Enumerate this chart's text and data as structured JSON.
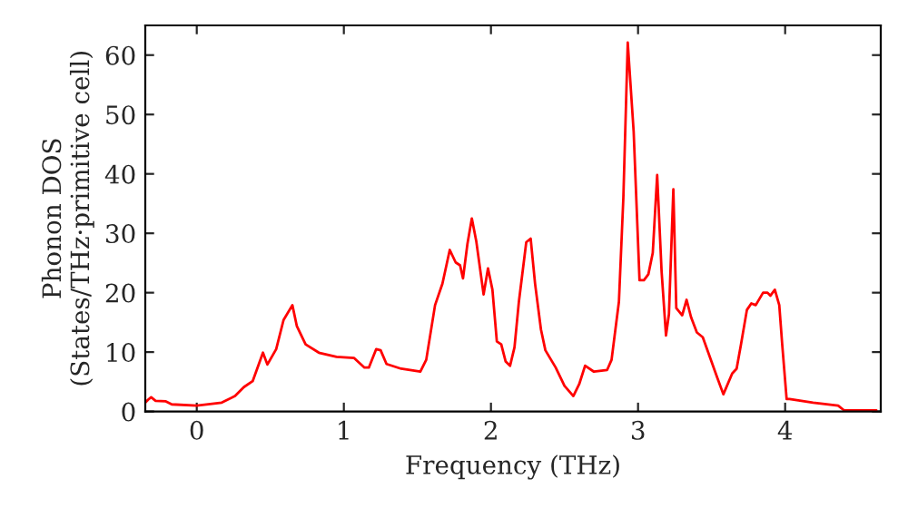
{
  "chart_data": {
    "type": "line",
    "xlabel": "Frequency (THz)",
    "ylabel": "Phonon DOS\n(States/THz·primitive cell)",
    "xlim": [
      -0.35,
      4.65
    ],
    "ylim": [
      0,
      65
    ],
    "xticks": [
      0,
      1,
      2,
      3,
      4
    ],
    "yticks": [
      0,
      10,
      20,
      30,
      40,
      50,
      60
    ],
    "grid": false,
    "legend": false,
    "series": [
      {
        "color": "#ff0000",
        "x": [
          -0.35,
          -0.33,
          -0.31,
          -0.28,
          -0.21,
          -0.17,
          0,
          0.17,
          0.26,
          0.32,
          0.38,
          0.45,
          0.48,
          0.54,
          0.59,
          0.65,
          0.68,
          0.74,
          0.83,
          0.95,
          1.07,
          1.14,
          1.17,
          1.22,
          1.25,
          1.29,
          1.39,
          1.52,
          1.56,
          1.62,
          1.67,
          1.72,
          1.76,
          1.79,
          1.81,
          1.84,
          1.87,
          1.9,
          1.95,
          1.98,
          2.01,
          2.04,
          2.07,
          2.1,
          2.13,
          2.16,
          2.19,
          2.24,
          2.27,
          2.3,
          2.34,
          2.37,
          2.44,
          2.5,
          2.56,
          2.6,
          2.64,
          2.7,
          2.79,
          2.82,
          2.87,
          2.9,
          2.93,
          2.97,
          3.01,
          3.04,
          3.07,
          3.1,
          3.13,
          3.16,
          3.19,
          3.21,
          3.24,
          3.26,
          3.3,
          3.33,
          3.36,
          3.4,
          3.44,
          3.54,
          3.58,
          3.64,
          3.67,
          3.7,
          3.74,
          3.77,
          3.8,
          3.85,
          3.88,
          3.9,
          3.93,
          3.96,
          3.98,
          4.01,
          4.03,
          4.19,
          4.36,
          4.4,
          4.62
        ],
        "values": [
          1.5,
          2.0,
          2.4,
          1.8,
          1.7,
          1.2,
          1.0,
          1.5,
          2.6,
          4.1,
          5.1,
          9.9,
          7.9,
          10.5,
          15.4,
          17.9,
          14.4,
          11.3,
          9.9,
          9.2,
          9.0,
          7.4,
          7.4,
          10.5,
          10.3,
          8.0,
          7.2,
          6.7,
          8.7,
          17.9,
          21.5,
          27.2,
          25.1,
          24.6,
          22.4,
          28.2,
          32.5,
          28.7,
          19.7,
          24.1,
          20.5,
          11.8,
          11.3,
          8.4,
          7.7,
          10.8,
          18.5,
          28.5,
          29.1,
          21.5,
          13.8,
          10.3,
          7.4,
          4.3,
          2.6,
          4.6,
          7.7,
          6.7,
          7.0,
          8.7,
          18.5,
          35.9,
          62.1,
          47.2,
          22.1,
          22.1,
          23.1,
          26.7,
          39.8,
          23.6,
          12.8,
          16.4,
          37.4,
          17.4,
          16.2,
          18.8,
          15.9,
          13.3,
          12.5,
          5.6,
          2.9,
          6.4,
          7.2,
          11.3,
          17.1,
          18.2,
          17.9,
          20.0,
          20.0,
          19.5,
          20.5,
          17.9,
          11.3,
          2.1,
          2.1,
          1.5,
          1.0,
          0.2,
          0.2
        ]
      }
    ]
  }
}
